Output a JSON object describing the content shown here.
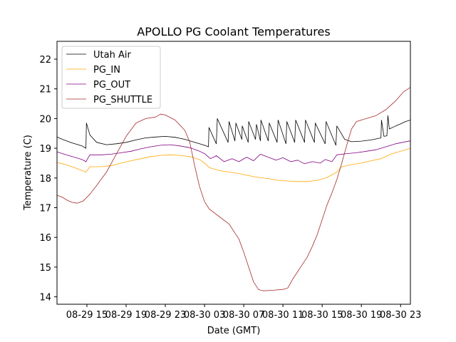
{
  "chart_data": {
    "type": "line",
    "title": "APOLLO PG Coolant Temperatures",
    "xlabel": "Date (GMT)",
    "ylabel": "Temperature (C)",
    "x_unit": "hours since 08-29 00:00 GMT",
    "xlim": [
      11.95,
      48.0
    ],
    "ylim": [
      13.75,
      22.6
    ],
    "grid": false,
    "legend_position": "top-left",
    "x_ticks": [
      {
        "value": 15,
        "label": "08-29 15"
      },
      {
        "value": 19,
        "label": "08-29 19"
      },
      {
        "value": 23,
        "label": "08-29 23"
      },
      {
        "value": 27,
        "label": "08-30 03"
      },
      {
        "value": 31,
        "label": "08-30 07"
      },
      {
        "value": 35,
        "label": "08-30 11"
      },
      {
        "value": 39,
        "label": "08-30 15"
      },
      {
        "value": 43,
        "label": "08-30 19"
      },
      {
        "value": 47,
        "label": "08-30 23"
      }
    ],
    "y_ticks": [
      {
        "value": 14,
        "label": "14"
      },
      {
        "value": 15,
        "label": "15"
      },
      {
        "value": 16,
        "label": "16"
      },
      {
        "value": 17,
        "label": "17"
      },
      {
        "value": 18,
        "label": "18"
      },
      {
        "value": 19,
        "label": "19"
      },
      {
        "value": 20,
        "label": "20"
      },
      {
        "value": 21,
        "label": "21"
      },
      {
        "value": 22,
        "label": "22"
      }
    ],
    "series": [
      {
        "name": "Utah Air",
        "color": "#000000",
        "points": [
          [
            11.95,
            19.38
          ],
          [
            12.5,
            19.3
          ],
          [
            13.5,
            19.18
          ],
          [
            14.5,
            19.08
          ],
          [
            14.9,
            19.0
          ],
          [
            14.95,
            19.85
          ],
          [
            15.3,
            19.45
          ],
          [
            16.0,
            19.2
          ],
          [
            17.0,
            19.12
          ],
          [
            18.0,
            19.15
          ],
          [
            19.0,
            19.2
          ],
          [
            20.0,
            19.28
          ],
          [
            21.0,
            19.35
          ],
          [
            22.0,
            19.38
          ],
          [
            23.0,
            19.4
          ],
          [
            24.0,
            19.37
          ],
          [
            25.0,
            19.3
          ],
          [
            26.0,
            19.2
          ],
          [
            27.0,
            19.1
          ],
          [
            27.4,
            19.05
          ],
          [
            27.45,
            19.7
          ],
          [
            28.2,
            19.15
          ],
          [
            28.3,
            20.0
          ],
          [
            29.4,
            19.2
          ],
          [
            29.5,
            19.9
          ],
          [
            30.1,
            19.25
          ],
          [
            30.2,
            19.85
          ],
          [
            30.8,
            19.3
          ],
          [
            30.85,
            19.75
          ],
          [
            31.45,
            19.2
          ],
          [
            31.5,
            19.9
          ],
          [
            32.2,
            19.3
          ],
          [
            32.3,
            19.8
          ],
          [
            32.7,
            19.25
          ],
          [
            32.75,
            19.95
          ],
          [
            33.5,
            19.25
          ],
          [
            33.6,
            19.85
          ],
          [
            34.4,
            19.2
          ],
          [
            34.5,
            19.95
          ],
          [
            35.3,
            19.15
          ],
          [
            35.4,
            19.9
          ],
          [
            36.2,
            19.2
          ],
          [
            36.3,
            19.95
          ],
          [
            37.2,
            19.2
          ],
          [
            37.3,
            19.95
          ],
          [
            38.2,
            19.2
          ],
          [
            38.3,
            19.85
          ],
          [
            39.3,
            19.15
          ],
          [
            39.4,
            19.9
          ],
          [
            40.4,
            19.1
          ],
          [
            40.5,
            19.75
          ],
          [
            41.3,
            19.3
          ],
          [
            42.0,
            19.22
          ],
          [
            43.0,
            19.24
          ],
          [
            44.0,
            19.28
          ],
          [
            45.0,
            19.35
          ],
          [
            45.05,
            19.95
          ],
          [
            45.3,
            19.4
          ],
          [
            45.6,
            19.42
          ],
          [
            45.7,
            20.1
          ],
          [
            45.85,
            19.65
          ],
          [
            46.5,
            19.75
          ],
          [
            47.0,
            19.82
          ],
          [
            47.5,
            19.9
          ],
          [
            48.0,
            19.95
          ]
        ]
      },
      {
        "name": "PG_IN",
        "color": "#FFA500",
        "points": [
          [
            11.95,
            18.52
          ],
          [
            12.5,
            18.48
          ],
          [
            13.5,
            18.38
          ],
          [
            14.5,
            18.25
          ],
          [
            14.9,
            18.2
          ],
          [
            15.3,
            18.38
          ],
          [
            16.5,
            18.38
          ],
          [
            17.5,
            18.42
          ],
          [
            18.5,
            18.5
          ],
          [
            19.5,
            18.58
          ],
          [
            20.5,
            18.65
          ],
          [
            21.5,
            18.72
          ],
          [
            22.5,
            18.76
          ],
          [
            23.5,
            18.78
          ],
          [
            24.5,
            18.76
          ],
          [
            25.5,
            18.72
          ],
          [
            26.5,
            18.62
          ],
          [
            27.0,
            18.5
          ],
          [
            27.5,
            18.35
          ],
          [
            28.5,
            18.25
          ],
          [
            29.5,
            18.2
          ],
          [
            30.5,
            18.15
          ],
          [
            31.5,
            18.08
          ],
          [
            32.5,
            18.02
          ],
          [
            33.5,
            17.98
          ],
          [
            34.5,
            17.92
          ],
          [
            35.5,
            17.9
          ],
          [
            36.5,
            17.88
          ],
          [
            37.5,
            17.88
          ],
          [
            38.5,
            17.92
          ],
          [
            39.5,
            18.02
          ],
          [
            40.5,
            18.2
          ],
          [
            41.0,
            18.38
          ],
          [
            42.0,
            18.45
          ],
          [
            43.0,
            18.5
          ],
          [
            44.0,
            18.58
          ],
          [
            45.0,
            18.65
          ],
          [
            46.0,
            18.8
          ],
          [
            47.0,
            18.9
          ],
          [
            48.0,
            19.0
          ]
        ]
      },
      {
        "name": "PG_OUT",
        "color": "#800080",
        "points": [
          [
            11.95,
            18.88
          ],
          [
            12.5,
            18.82
          ],
          [
            13.5,
            18.72
          ],
          [
            14.5,
            18.62
          ],
          [
            14.9,
            18.55
          ],
          [
            15.3,
            18.78
          ],
          [
            16.5,
            18.78
          ],
          [
            17.5,
            18.8
          ],
          [
            18.5,
            18.85
          ],
          [
            19.5,
            18.9
          ],
          [
            20.5,
            18.98
          ],
          [
            21.5,
            19.05
          ],
          [
            22.5,
            19.1
          ],
          [
            23.5,
            19.12
          ],
          [
            24.5,
            19.08
          ],
          [
            25.5,
            19.02
          ],
          [
            26.5,
            18.9
          ],
          [
            27.0,
            18.82
          ],
          [
            27.6,
            18.65
          ],
          [
            28.2,
            18.75
          ],
          [
            29.0,
            18.55
          ],
          [
            29.8,
            18.65
          ],
          [
            30.5,
            18.55
          ],
          [
            31.3,
            18.7
          ],
          [
            32.0,
            18.58
          ],
          [
            32.7,
            18.8
          ],
          [
            33.5,
            18.7
          ],
          [
            34.3,
            18.6
          ],
          [
            35.0,
            18.68
          ],
          [
            35.8,
            18.55
          ],
          [
            36.5,
            18.6
          ],
          [
            37.2,
            18.48
          ],
          [
            38.0,
            18.55
          ],
          [
            38.8,
            18.5
          ],
          [
            39.3,
            18.62
          ],
          [
            40.0,
            18.55
          ],
          [
            40.5,
            18.78
          ],
          [
            41.5,
            18.82
          ],
          [
            42.5,
            18.85
          ],
          [
            43.5,
            18.9
          ],
          [
            44.5,
            18.95
          ],
          [
            45.5,
            19.05
          ],
          [
            46.5,
            19.15
          ],
          [
            47.2,
            19.2
          ],
          [
            48.0,
            19.25
          ]
        ]
      },
      {
        "name": "PG_SHUTTLE",
        "color": "#A52A2A",
        "points": [
          [
            11.95,
            17.42
          ],
          [
            12.5,
            17.35
          ],
          [
            13.0,
            17.25
          ],
          [
            13.5,
            17.18
          ],
          [
            14.0,
            17.15
          ],
          [
            14.6,
            17.22
          ],
          [
            15.3,
            17.45
          ],
          [
            16.0,
            17.75
          ],
          [
            17.0,
            18.2
          ],
          [
            18.0,
            18.8
          ],
          [
            19.0,
            19.4
          ],
          [
            20.0,
            19.85
          ],
          [
            21.0,
            20.0
          ],
          [
            22.0,
            20.05
          ],
          [
            22.5,
            20.15
          ],
          [
            23.0,
            20.12
          ],
          [
            24.0,
            19.95
          ],
          [
            25.0,
            19.6
          ],
          [
            25.5,
            19.2
          ],
          [
            26.0,
            18.4
          ],
          [
            26.5,
            17.7
          ],
          [
            27.0,
            17.2
          ],
          [
            27.5,
            16.95
          ],
          [
            28.5,
            16.7
          ],
          [
            29.5,
            16.45
          ],
          [
            30.0,
            16.2
          ],
          [
            30.5,
            15.95
          ],
          [
            31.0,
            15.5
          ],
          [
            31.5,
            15.0
          ],
          [
            32.0,
            14.5
          ],
          [
            32.5,
            14.25
          ],
          [
            33.0,
            14.2
          ],
          [
            34.0,
            14.22
          ],
          [
            35.0,
            14.25
          ],
          [
            35.5,
            14.3
          ],
          [
            36.0,
            14.6
          ],
          [
            36.5,
            14.85
          ],
          [
            37.0,
            15.1
          ],
          [
            37.5,
            15.35
          ],
          [
            38.0,
            15.7
          ],
          [
            38.5,
            16.1
          ],
          [
            39.0,
            16.6
          ],
          [
            39.5,
            17.1
          ],
          [
            40.0,
            17.5
          ],
          [
            40.5,
            17.95
          ],
          [
            41.0,
            18.5
          ],
          [
            41.5,
            19.1
          ],
          [
            42.0,
            19.65
          ],
          [
            42.5,
            19.9
          ],
          [
            43.5,
            20.0
          ],
          [
            44.5,
            20.1
          ],
          [
            45.5,
            20.3
          ],
          [
            46.5,
            20.6
          ],
          [
            47.3,
            20.9
          ],
          [
            48.0,
            21.05
          ]
        ]
      }
    ]
  }
}
